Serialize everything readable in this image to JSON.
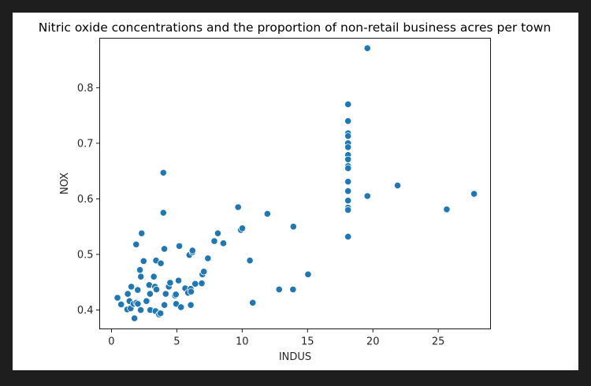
{
  "chart_data": {
    "type": "scatter",
    "title": "Nitric oxide concentrations and the proportion of non-retail business acres per town",
    "xlabel": "INDUS",
    "ylabel": "NOX",
    "xlim": [
      -0.9,
      29.0
    ],
    "ylim": [
      0.366,
      0.889
    ],
    "xticks": [
      0,
      5,
      10,
      15,
      20,
      25
    ],
    "yticks": [
      0.4,
      0.5,
      0.6,
      0.7,
      0.8
    ],
    "ytick_labels": [
      "0.4",
      "0.5",
      "0.6",
      "0.7",
      "0.8"
    ],
    "grid": false,
    "marker_color": "#1f77b4",
    "marker_edge_color": "#ffffff",
    "points": [
      [
        0.46,
        0.422
      ],
      [
        0.74,
        0.41
      ],
      [
        1.21,
        0.401
      ],
      [
        1.25,
        0.429
      ],
      [
        1.38,
        0.416
      ],
      [
        1.47,
        0.403
      ],
      [
        1.52,
        0.442
      ],
      [
        1.69,
        0.411
      ],
      [
        1.76,
        0.385
      ],
      [
        1.89,
        0.518
      ],
      [
        1.91,
        0.413
      ],
      [
        2.01,
        0.436
      ],
      [
        2.02,
        0.411
      ],
      [
        2.18,
        0.472
      ],
      [
        2.24,
        0.4
      ],
      [
        2.25,
        0.46
      ],
      [
        2.31,
        0.538
      ],
      [
        2.46,
        0.488
      ],
      [
        2.68,
        0.416
      ],
      [
        2.89,
        0.445
      ],
      [
        2.95,
        0.429
      ],
      [
        2.97,
        0.4
      ],
      [
        3.24,
        0.46
      ],
      [
        3.33,
        0.442
      ],
      [
        3.37,
        0.398
      ],
      [
        3.41,
        0.489
      ],
      [
        3.44,
        0.437
      ],
      [
        3.64,
        0.392
      ],
      [
        3.75,
        0.394
      ],
      [
        3.78,
        0.484
      ],
      [
        3.97,
        0.647
      ],
      [
        3.97,
        0.575
      ],
      [
        4.05,
        0.51
      ],
      [
        4.05,
        0.409
      ],
      [
        4.15,
        0.429
      ],
      [
        4.39,
        0.442
      ],
      [
        4.49,
        0.449
      ],
      [
        4.86,
        0.426
      ],
      [
        4.93,
        0.428
      ],
      [
        4.95,
        0.411
      ],
      [
        5.13,
        0.453
      ],
      [
        5.19,
        0.515
      ],
      [
        5.32,
        0.405
      ],
      [
        5.64,
        0.439
      ],
      [
        5.86,
        0.431
      ],
      [
        5.96,
        0.499
      ],
      [
        6.06,
        0.438
      ],
      [
        6.07,
        0.409
      ],
      [
        6.09,
        0.433
      ],
      [
        6.2,
        0.504
      ],
      [
        6.2,
        0.507
      ],
      [
        6.41,
        0.447
      ],
      [
        6.91,
        0.448
      ],
      [
        6.96,
        0.464
      ],
      [
        7.07,
        0.469
      ],
      [
        7.38,
        0.493
      ],
      [
        7.87,
        0.524
      ],
      [
        8.14,
        0.538
      ],
      [
        8.56,
        0.52
      ],
      [
        9.69,
        0.585
      ],
      [
        9.9,
        0.544
      ],
      [
        10.01,
        0.547
      ],
      [
        10.59,
        0.489
      ],
      [
        10.81,
        0.413
      ],
      [
        11.93,
        0.573
      ],
      [
        12.83,
        0.437
      ],
      [
        13.89,
        0.437
      ],
      [
        13.92,
        0.55
      ],
      [
        15.04,
        0.464
      ],
      [
        18.1,
        0.77
      ],
      [
        18.1,
        0.74
      ],
      [
        18.1,
        0.718
      ],
      [
        18.1,
        0.713
      ],
      [
        18.1,
        0.7
      ],
      [
        18.1,
        0.693
      ],
      [
        18.1,
        0.679
      ],
      [
        18.1,
        0.671
      ],
      [
        18.1,
        0.659
      ],
      [
        18.1,
        0.655
      ],
      [
        18.1,
        0.631
      ],
      [
        18.1,
        0.614
      ],
      [
        18.1,
        0.597
      ],
      [
        18.1,
        0.584
      ],
      [
        18.1,
        0.58
      ],
      [
        18.1,
        0.532
      ],
      [
        19.58,
        0.871
      ],
      [
        19.58,
        0.605
      ],
      [
        21.89,
        0.624
      ],
      [
        25.65,
        0.581
      ],
      [
        27.74,
        0.609
      ]
    ]
  }
}
